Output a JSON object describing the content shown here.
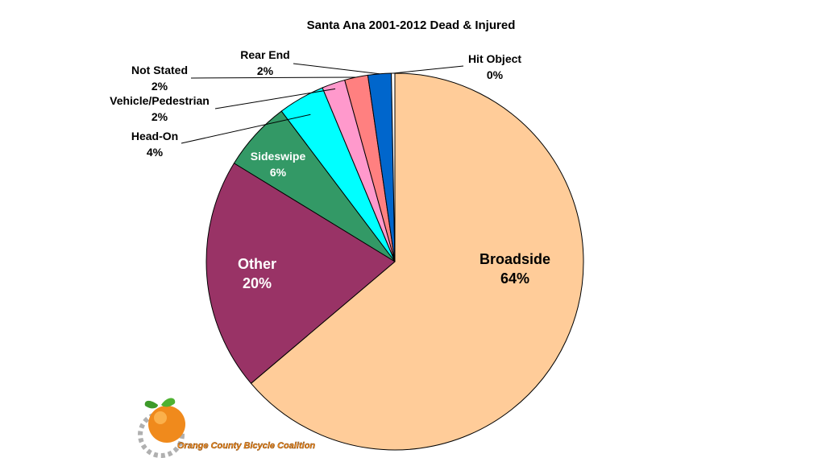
{
  "chart_data": {
    "type": "pie",
    "title": "Santa Ana 2001-2012 Dead & Injured",
    "start_angle_deg": 0,
    "direction": "clockwise",
    "slices": [
      {
        "label": "Broadside",
        "value": 64,
        "value_label": "64%",
        "color": "#FFCC99"
      },
      {
        "label": "Other",
        "value": 20,
        "value_label": "20%",
        "color": "#993366"
      },
      {
        "label": "Sideswipe",
        "value": 6,
        "value_label": "6%",
        "color": "#339966"
      },
      {
        "label": "Head-On",
        "value": 4,
        "value_label": "4%",
        "color": "#00FFFF"
      },
      {
        "label": "Vehicle/Pedestrian",
        "value": 2,
        "value_label": "2%",
        "color": "#FF99CC"
      },
      {
        "label": "Not Stated",
        "value": 2,
        "value_label": "2%",
        "color": "#FF8080"
      },
      {
        "label": "Rear End",
        "value": 2,
        "value_label": "2%",
        "color": "#0066CC"
      },
      {
        "label": "Hit Object",
        "value": 0.3,
        "value_label": "0%",
        "color": "#FFFFFF"
      }
    ]
  },
  "logo": {
    "text": "Orange County Bicycle Coalition"
  }
}
